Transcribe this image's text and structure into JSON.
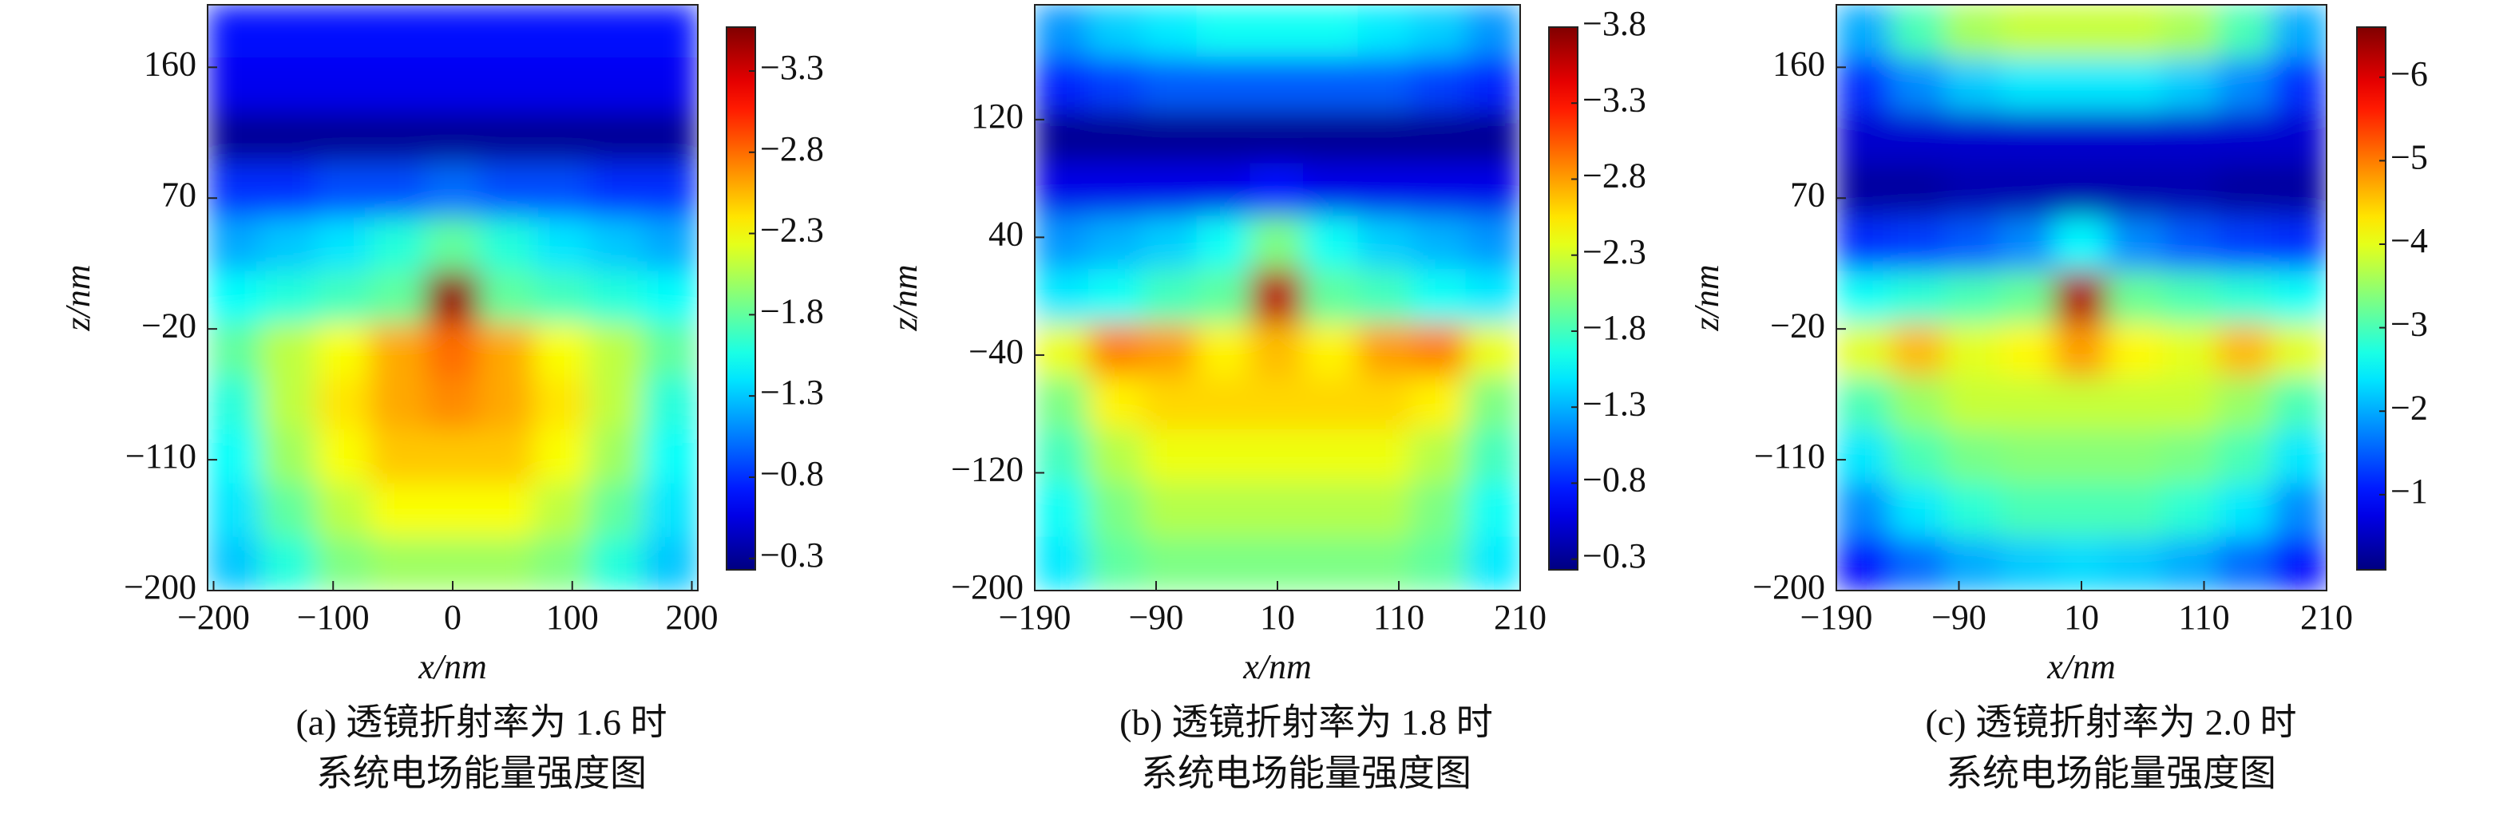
{
  "chart_data": [
    {
      "type": "heatmap",
      "colormap": "jet",
      "x": [
        -182,
        -137,
        -91,
        -46,
        0,
        46,
        91,
        137,
        182
      ],
      "y": [
        185,
        148,
        111,
        75,
        38,
        1,
        -35,
        -72,
        -108,
        -145,
        -182
      ],
      "values": [
        [
          -0.7,
          -0.7,
          -0.7,
          -0.7,
          -0.7,
          -0.7,
          -0.7,
          -0.7,
          -0.7
        ],
        [
          -0.6,
          -0.6,
          -0.6,
          -0.6,
          -0.6,
          -0.6,
          -0.6,
          -0.6,
          -0.6
        ],
        [
          -0.3,
          -0.3,
          -0.3,
          -0.3,
          -0.3,
          -0.3,
          -0.3,
          -0.3,
          -0.3
        ],
        [
          -0.8,
          -0.8,
          -0.9,
          -0.9,
          -1.0,
          -0.9,
          -0.9,
          -0.8,
          -0.8
        ],
        [
          -1.2,
          -1.3,
          -1.4,
          -1.6,
          -1.8,
          -1.6,
          -1.4,
          -1.3,
          -1.2
        ],
        [
          -1.5,
          -1.6,
          -1.7,
          -1.8,
          -3.5,
          -1.8,
          -1.7,
          -1.6,
          -1.5
        ],
        [
          -1.8,
          -2.1,
          -2.3,
          -2.6,
          -2.8,
          -2.6,
          -2.3,
          -2.1,
          -1.8
        ],
        [
          -1.6,
          -2.1,
          -2.4,
          -2.6,
          -2.7,
          -2.6,
          -2.4,
          -2.1,
          -1.6
        ],
        [
          -1.5,
          -2.0,
          -2.3,
          -2.5,
          -2.5,
          -2.5,
          -2.3,
          -2.0,
          -1.5
        ],
        [
          -1.4,
          -1.8,
          -2.1,
          -2.3,
          -2.3,
          -2.3,
          -2.1,
          -1.8,
          -1.4
        ],
        [
          -1.3,
          -1.6,
          -1.9,
          -2.0,
          -2.0,
          -2.0,
          -1.9,
          -1.6,
          -1.3
        ]
      ],
      "xlim": [
        -205,
        205
      ],
      "ylim": [
        -200,
        203
      ],
      "xticks": [
        {
          "value": -200,
          "label": "−200"
        },
        {
          "value": -100,
          "label": "−100"
        },
        0,
        100,
        200
      ],
      "yticks": [
        160,
        70,
        {
          "value": -20,
          "label": "−20"
        },
        {
          "value": -110,
          "label": "−110"
        },
        {
          "value": -200,
          "label": "−200"
        }
      ],
      "xlabel": "x/nm",
      "ylabel": "z/nm",
      "clim": [
        -0.23,
        -3.57
      ],
      "cticks": [
        {
          "value": -3.3,
          "label": "−3.3"
        },
        {
          "value": -2.8,
          "label": "−2.8"
        },
        {
          "value": -2.3,
          "label": "−2.3"
        },
        {
          "value": -1.8,
          "label": "−1.8"
        },
        {
          "value": -1.3,
          "label": "−1.3"
        },
        {
          "value": -0.8,
          "label": "−0.8"
        },
        {
          "value": -0.3,
          "label": "−0.3"
        }
      ],
      "caption": [
        "(a) 透镜折射率为 1.6 时",
        "系统电场能量强度图"
      ]
    },
    {
      "type": "heatmap",
      "colormap": "jet",
      "x": [
        -168,
        -123,
        -79,
        -34,
        10,
        54,
        99,
        143,
        188
      ],
      "y": [
        180,
        144,
        108,
        72,
        36,
        0,
        -37,
        -73,
        -109,
        -145,
        -182
      ],
      "values": [
        [
          -1.2,
          -1.4,
          -1.5,
          -1.6,
          -1.6,
          -1.6,
          -1.5,
          -1.4,
          -1.2
        ],
        [
          -0.8,
          -0.9,
          -1.0,
          -1.0,
          -1.0,
          -1.0,
          -1.0,
          -0.9,
          -0.8
        ],
        [
          -0.3,
          -0.3,
          -0.3,
          -0.3,
          -0.3,
          -0.3,
          -0.3,
          -0.3,
          -0.3
        ],
        [
          -0.6,
          -0.6,
          -0.6,
          -0.6,
          -0.7,
          -0.6,
          -0.6,
          -0.6,
          -0.6
        ],
        [
          -1.2,
          -1.3,
          -1.4,
          -1.6,
          -2.0,
          -1.6,
          -1.4,
          -1.3,
          -1.2
        ],
        [
          -1.5,
          -1.6,
          -1.8,
          -1.9,
          -3.6,
          -1.9,
          -1.8,
          -1.6,
          -1.5
        ],
        [
          -2.4,
          -2.9,
          -2.8,
          -2.5,
          -2.7,
          -2.5,
          -2.8,
          -2.9,
          -2.4
        ],
        [
          -2.0,
          -2.5,
          -2.6,
          -2.6,
          -2.6,
          -2.6,
          -2.6,
          -2.5,
          -2.0
        ],
        [
          -1.8,
          -2.2,
          -2.4,
          -2.4,
          -2.4,
          -2.4,
          -2.4,
          -2.2,
          -1.8
        ],
        [
          -1.6,
          -2.0,
          -2.2,
          -2.2,
          -2.2,
          -2.2,
          -2.2,
          -2.0,
          -1.6
        ],
        [
          -1.5,
          -1.9,
          -2.0,
          -2.0,
          -2.0,
          -2.0,
          -2.0,
          -1.9,
          -1.5
        ]
      ],
      "xlim": [
        -190,
        210
      ],
      "ylim": [
        -200,
        198
      ],
      "xticks": [
        {
          "value": -190,
          "label": "−190"
        },
        {
          "value": -90,
          "label": "−90"
        },
        10,
        110,
        210
      ],
      "yticks": [
        120,
        40,
        {
          "value": -40,
          "label": "−40"
        },
        {
          "value": -120,
          "label": "−120"
        },
        {
          "value": -200,
          "label": "−200"
        }
      ],
      "xlabel": "x/nm",
      "ylabel": "z/nm",
      "clim": [
        -0.23,
        -3.8
      ],
      "cticks": [
        {
          "value": -3.8,
          "label": "−3.8"
        },
        {
          "value": -3.3,
          "label": "−3.3"
        },
        {
          "value": -2.8,
          "label": "−2.8"
        },
        {
          "value": -2.3,
          "label": "−2.3"
        },
        {
          "value": -1.8,
          "label": "−1.8"
        },
        {
          "value": -1.3,
          "label": "−1.3"
        },
        {
          "value": -0.8,
          "label": "−0.8"
        },
        {
          "value": -0.3,
          "label": "−0.3"
        }
      ],
      "caption": [
        "(b) 透镜折射率为 1.8 时",
        "系统电场能量强度图"
      ]
    },
    {
      "type": "heatmap",
      "colormap": "jet",
      "x": [
        -168,
        -123,
        -79,
        -34,
        10,
        54,
        99,
        143,
        188
      ],
      "y": [
        185,
        148,
        111,
        75,
        38,
        1,
        -35,
        -72,
        -108,
        -145,
        -182
      ],
      "values": [
        [
          -2.0,
          -3.0,
          -3.6,
          -3.8,
          -3.8,
          -3.8,
          -3.6,
          -3.0,
          -2.0
        ],
        [
          -1.2,
          -1.8,
          -2.2,
          -2.4,
          -2.4,
          -2.4,
          -2.2,
          -1.8,
          -1.2
        ],
        [
          -0.6,
          -0.6,
          -0.6,
          -0.6,
          -0.6,
          -0.6,
          -0.6,
          -0.6,
          -0.6
        ],
        [
          -0.3,
          -0.3,
          -0.4,
          -0.4,
          -0.4,
          -0.4,
          -0.4,
          -0.3,
          -0.3
        ],
        [
          -1.2,
          -1.3,
          -1.5,
          -1.8,
          -2.5,
          -1.8,
          -1.5,
          -1.3,
          -1.2
        ],
        [
          -2.6,
          -2.8,
          -3.0,
          -3.2,
          -6.3,
          -3.2,
          -3.0,
          -2.8,
          -2.6
        ],
        [
          -4.0,
          -4.6,
          -4.0,
          -4.2,
          -4.8,
          -4.2,
          -4.0,
          -4.6,
          -4.0
        ],
        [
          -3.0,
          -3.5,
          -3.8,
          -3.8,
          -3.8,
          -3.8,
          -3.8,
          -3.5,
          -3.0
        ],
        [
          -2.4,
          -3.0,
          -3.3,
          -3.4,
          -3.4,
          -3.4,
          -3.3,
          -3.0,
          -2.4
        ],
        [
          -1.8,
          -2.4,
          -2.8,
          -3.0,
          -3.0,
          -3.0,
          -2.8,
          -2.4,
          -1.8
        ],
        [
          -1.0,
          -1.6,
          -2.0,
          -2.2,
          -2.3,
          -2.2,
          -2.0,
          -1.6,
          -1.0
        ]
      ],
      "xlim": [
        -190,
        210
      ],
      "ylim": [
        -200,
        203
      ],
      "xticks": [
        {
          "value": -190,
          "label": "−190"
        },
        {
          "value": -90,
          "label": "−90"
        },
        10,
        110,
        210
      ],
      "yticks": [
        160,
        70,
        {
          "value": -20,
          "label": "−20"
        },
        {
          "value": -110,
          "label": "−110"
        },
        {
          "value": -200,
          "label": "−200"
        }
      ],
      "xlabel": "x/nm",
      "ylabel": "z/nm",
      "clim": [
        -0.1,
        -6.6
      ],
      "cticks": [
        {
          "value": -6,
          "label": "−6"
        },
        {
          "value": -5,
          "label": "−5"
        },
        {
          "value": -4,
          "label": "−4"
        },
        {
          "value": -3,
          "label": "−3"
        },
        {
          "value": -2,
          "label": "−2"
        },
        {
          "value": -1,
          "label": "−1"
        }
      ],
      "caption": [
        "(c) 透镜折射率为 2.0 时",
        "系统电场能量强度图"
      ]
    }
  ]
}
